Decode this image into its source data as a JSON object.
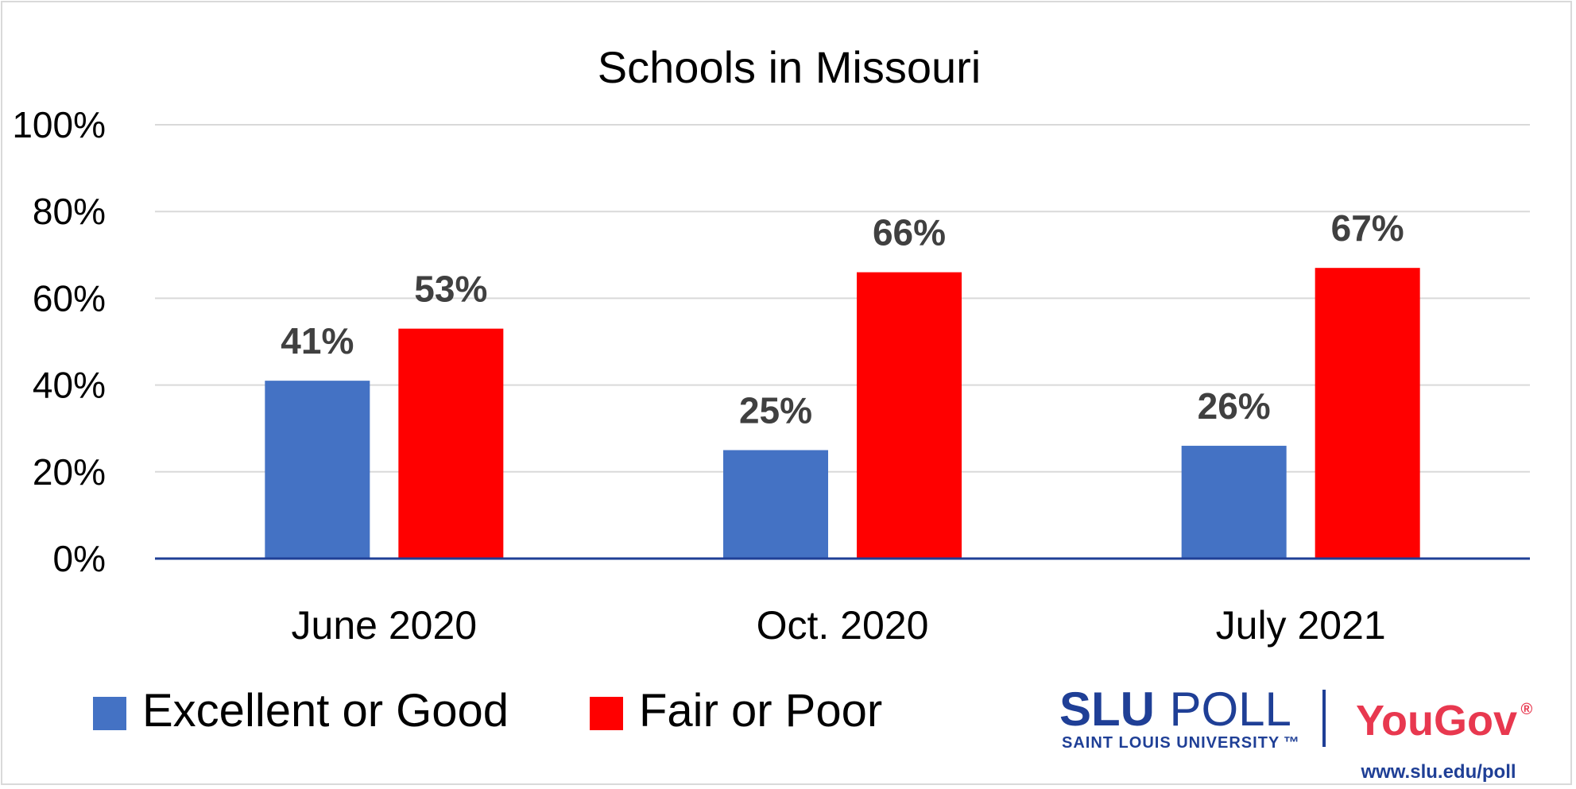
{
  "chart_data": {
    "type": "bar",
    "title": "Schools in Missouri",
    "categories": [
      "June 2020",
      "Oct. 2020",
      "July 2021"
    ],
    "series": [
      {
        "name": "Excellent or Good",
        "values": [
          41,
          25,
          26
        ],
        "labels": [
          "41%",
          "25%",
          "26%"
        ],
        "color": "#4472c4"
      },
      {
        "name": "Fair or Poor",
        "values": [
          53,
          66,
          67
        ],
        "labels": [
          "53%",
          "66%",
          "67%"
        ],
        "color": "#ff0000"
      }
    ],
    "ylim": [
      0,
      100
    ],
    "yticks": [
      0,
      20,
      40,
      60,
      80,
      100
    ],
    "ytick_labels": [
      "0%",
      "20%",
      "40%",
      "60%",
      "80%",
      "100%"
    ],
    "xlabel": "",
    "ylabel": "",
    "grid": true,
    "legend_position": "bottom-left"
  },
  "branding": {
    "slu": "SLU",
    "poll": "POLL",
    "university": "SAINT LOUIS UNIVERSITY",
    "tm": "™",
    "yougov": "YouGov",
    "registered": "®",
    "url": "www.slu.edu/poll"
  },
  "colors": {
    "axis": "#1f3f96",
    "grid": "#d9d9d9",
    "label": "#404040"
  }
}
